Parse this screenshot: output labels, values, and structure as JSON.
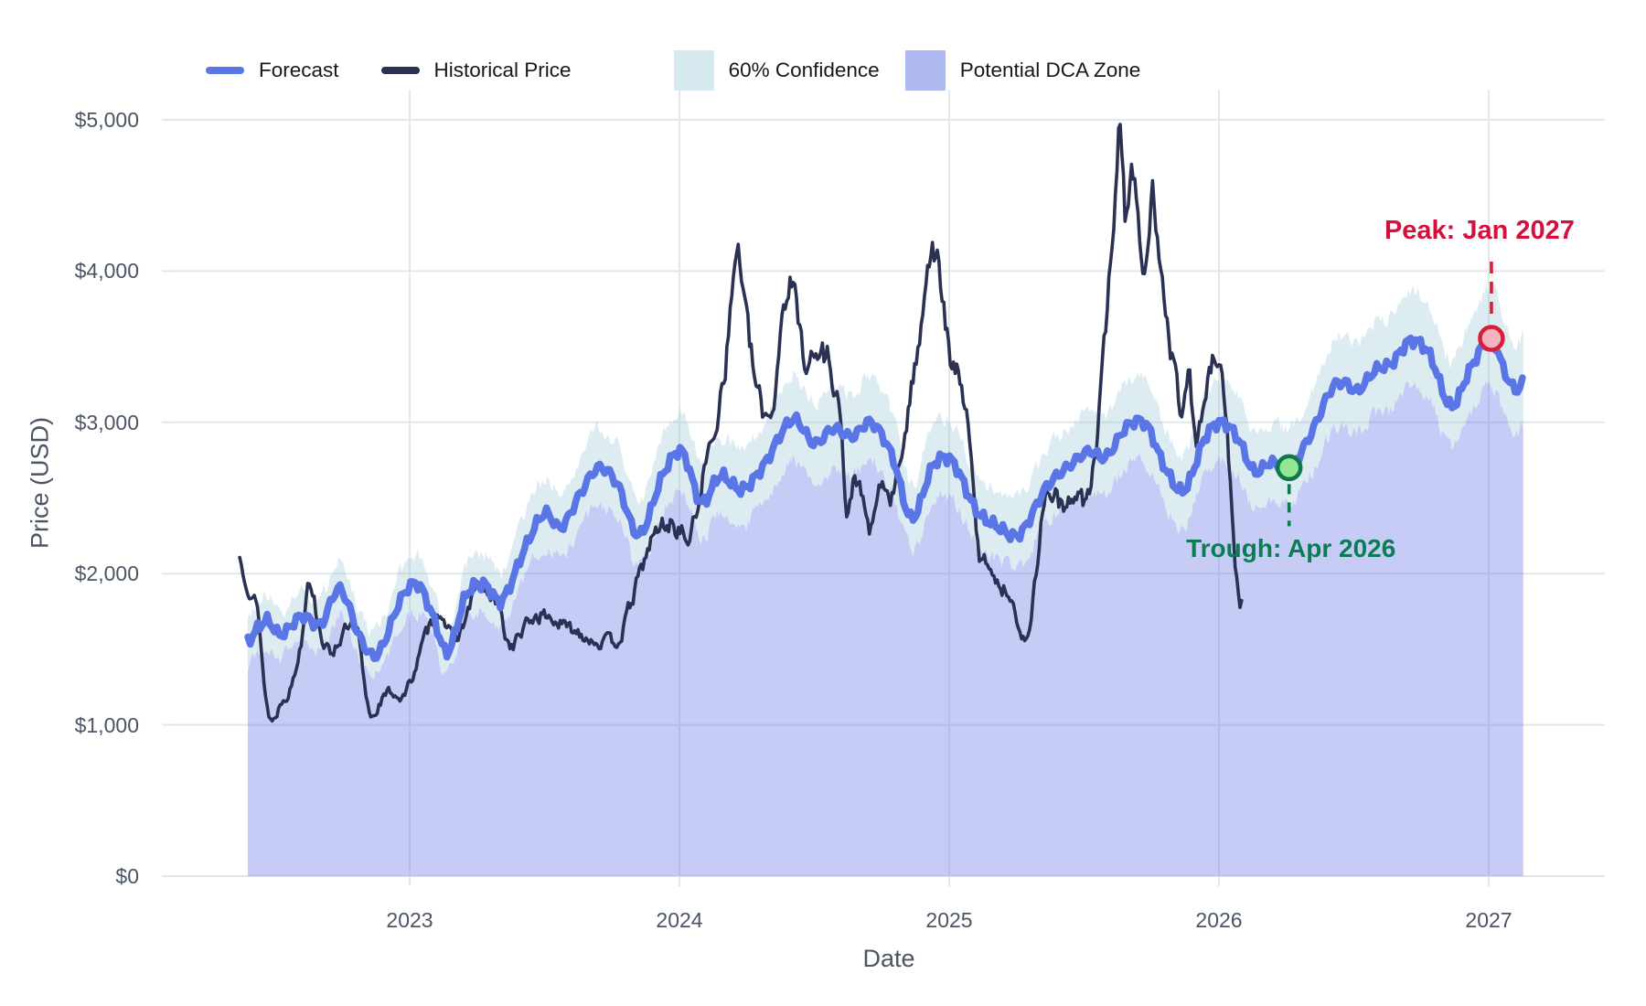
{
  "legend": {
    "items": [
      {
        "id": "forecast",
        "label": "Forecast",
        "swatch": "line",
        "color": "#5a75e6"
      },
      {
        "id": "historical",
        "label": "Historical Price",
        "swatch": "line",
        "color": "#2b3152"
      },
      {
        "id": "confidence",
        "label": "60% Confidence",
        "swatch": "patch",
        "color": "#d5e9ef"
      },
      {
        "id": "dca-zone",
        "label": "Potential DCA Zone",
        "swatch": "patch",
        "color": "#aeb9f1"
      }
    ]
  },
  "chart_data": {
    "type": "line",
    "xlabel": "Date",
    "ylabel": "Price (USD)",
    "ylim": [
      0,
      5000
    ],
    "xlim_years": [
      2022.13,
      2027.43
    ],
    "grid": true,
    "legend_position": "top-left",
    "y_ticks": [
      {
        "value": 0,
        "label": "$0"
      },
      {
        "value": 1000,
        "label": "$1,000"
      },
      {
        "value": 2000,
        "label": "$2,000"
      },
      {
        "value": 3000,
        "label": "$3,000"
      },
      {
        "value": 4000,
        "label": "$4,000"
      },
      {
        "value": 5000,
        "label": "$5,000"
      }
    ],
    "x_ticks": [
      {
        "value": 2023,
        "label": "2023"
      },
      {
        "value": 2024,
        "label": "2024"
      },
      {
        "value": 2025,
        "label": "2025"
      },
      {
        "value": 2026,
        "label": "2026"
      },
      {
        "value": 2027,
        "label": "2027"
      }
    ],
    "series": [
      {
        "name": "Historical Price",
        "color": "#2b3152",
        "style": "noisy-daily-line",
        "points": [
          [
            2022.37,
            2100
          ],
          [
            2022.4,
            1950
          ],
          [
            2022.44,
            1700
          ],
          [
            2022.465,
            1200
          ],
          [
            2022.49,
            1030
          ],
          [
            2022.53,
            1180
          ],
          [
            2022.56,
            1250
          ],
          [
            2022.6,
            1580
          ],
          [
            2022.625,
            1990
          ],
          [
            2022.66,
            1690
          ],
          [
            2022.7,
            1480
          ],
          [
            2022.74,
            1570
          ],
          [
            2022.78,
            1640
          ],
          [
            2022.81,
            1570
          ],
          [
            2022.835,
            1220
          ],
          [
            2022.86,
            1060
          ],
          [
            2022.89,
            1150
          ],
          [
            2022.93,
            1215
          ],
          [
            2022.98,
            1195
          ],
          [
            2023.03,
            1430
          ],
          [
            2023.07,
            1630
          ],
          [
            2023.12,
            1745
          ],
          [
            2023.16,
            1560
          ],
          [
            2023.2,
            1670
          ],
          [
            2023.25,
            1910
          ],
          [
            2023.29,
            1855
          ],
          [
            2023.33,
            1765
          ],
          [
            2023.37,
            1530
          ],
          [
            2023.42,
            1625
          ],
          [
            2023.47,
            1720
          ],
          [
            2023.53,
            1700
          ],
          [
            2023.58,
            1640
          ],
          [
            2023.63,
            1615
          ],
          [
            2023.68,
            1565
          ],
          [
            2023.73,
            1545
          ],
          [
            2023.78,
            1585
          ],
          [
            2023.82,
            1800
          ],
          [
            2023.86,
            2030
          ],
          [
            2023.9,
            2230
          ],
          [
            2023.95,
            2330
          ],
          [
            2024.0,
            2290
          ],
          [
            2024.04,
            2245
          ],
          [
            2024.09,
            2660
          ],
          [
            2024.13,
            2960
          ],
          [
            2024.18,
            3550
          ],
          [
            2024.215,
            4150
          ],
          [
            2024.25,
            3640
          ],
          [
            2024.285,
            3230
          ],
          [
            2024.315,
            3060
          ],
          [
            2024.35,
            3160
          ],
          [
            2024.385,
            3780
          ],
          [
            2024.42,
            3880
          ],
          [
            2024.46,
            3480
          ],
          [
            2024.5,
            3420
          ],
          [
            2024.535,
            3460
          ],
          [
            2024.565,
            3340
          ],
          [
            2024.6,
            2980
          ],
          [
            2024.62,
            2340
          ],
          [
            2024.65,
            2660
          ],
          [
            2024.68,
            2450
          ],
          [
            2024.715,
            2290
          ],
          [
            2024.75,
            2610
          ],
          [
            2024.78,
            2480
          ],
          [
            2024.81,
            2660
          ],
          [
            2024.85,
            3110
          ],
          [
            2024.88,
            3420
          ],
          [
            2024.91,
            3950
          ],
          [
            2024.94,
            4150
          ],
          [
            2024.97,
            3880
          ],
          [
            2025.01,
            3340
          ],
          [
            2025.045,
            3290
          ],
          [
            2025.08,
            2740
          ],
          [
            2025.11,
            2140
          ],
          [
            2025.15,
            2080
          ],
          [
            2025.19,
            1900
          ],
          [
            2025.23,
            1880
          ],
          [
            2025.27,
            1540
          ],
          [
            2025.31,
            1820
          ],
          [
            2025.35,
            2460
          ],
          [
            2025.39,
            2530
          ],
          [
            2025.43,
            2400
          ],
          [
            2025.47,
            2560
          ],
          [
            2025.51,
            2480
          ],
          [
            2025.55,
            2920
          ],
          [
            2025.58,
            3620
          ],
          [
            2025.61,
            4400
          ],
          [
            2025.635,
            4930
          ],
          [
            2025.655,
            4380
          ],
          [
            2025.675,
            4720
          ],
          [
            2025.695,
            4520
          ],
          [
            2025.715,
            3920
          ],
          [
            2025.735,
            4110
          ],
          [
            2025.755,
            4500
          ],
          [
            2025.775,
            4230
          ],
          [
            2025.8,
            3860
          ],
          [
            2025.83,
            3400
          ],
          [
            2025.86,
            3110
          ],
          [
            2025.885,
            3360
          ],
          [
            2025.91,
            2910
          ],
          [
            2025.94,
            3060
          ],
          [
            2025.97,
            3340
          ],
          [
            2026.0,
            3350
          ],
          [
            2026.03,
            2920
          ],
          [
            2026.055,
            2200
          ],
          [
            2026.075,
            1820
          ],
          [
            2026.085,
            1860
          ]
        ]
      },
      {
        "name": "Forecast",
        "color": "#5a75e6",
        "style": "thick-smooth-line",
        "points": [
          [
            2022.4,
            1550
          ],
          [
            2022.47,
            1690
          ],
          [
            2022.52,
            1595
          ],
          [
            2022.6,
            1720
          ],
          [
            2022.67,
            1665
          ],
          [
            2022.74,
            1900
          ],
          [
            2022.82,
            1560
          ],
          [
            2022.88,
            1465
          ],
          [
            2022.97,
            1840
          ],
          [
            2023.03,
            1930
          ],
          [
            2023.09,
            1700
          ],
          [
            2023.14,
            1480
          ],
          [
            2023.21,
            1860
          ],
          [
            2023.28,
            1925
          ],
          [
            2023.34,
            1820
          ],
          [
            2023.43,
            2180
          ],
          [
            2023.5,
            2400
          ],
          [
            2023.56,
            2305
          ],
          [
            2023.63,
            2520
          ],
          [
            2023.7,
            2700
          ],
          [
            2023.77,
            2590
          ],
          [
            2023.85,
            2255
          ],
          [
            2023.94,
            2660
          ],
          [
            2024.01,
            2805
          ],
          [
            2024.08,
            2470
          ],
          [
            2024.15,
            2645
          ],
          [
            2024.23,
            2555
          ],
          [
            2024.31,
            2710
          ],
          [
            2024.42,
            3020
          ],
          [
            2024.5,
            2860
          ],
          [
            2024.57,
            2960
          ],
          [
            2024.64,
            2905
          ],
          [
            2024.71,
            3000
          ],
          [
            2024.79,
            2770
          ],
          [
            2024.86,
            2365
          ],
          [
            2024.94,
            2715
          ],
          [
            2025.01,
            2745
          ],
          [
            2025.1,
            2420
          ],
          [
            2025.18,
            2310
          ],
          [
            2025.26,
            2260
          ],
          [
            2025.36,
            2570
          ],
          [
            2025.45,
            2720
          ],
          [
            2025.52,
            2810
          ],
          [
            2025.58,
            2770
          ],
          [
            2025.66,
            2975
          ],
          [
            2025.73,
            2985
          ],
          [
            2025.8,
            2700
          ],
          [
            2025.87,
            2550
          ],
          [
            2025.95,
            2905
          ],
          [
            2026.01,
            3000
          ],
          [
            2026.07,
            2895
          ],
          [
            2026.13,
            2675
          ],
          [
            2026.19,
            2735
          ],
          [
            2026.26,
            2700
          ],
          [
            2026.34,
            2920
          ],
          [
            2026.42,
            3230
          ],
          [
            2026.47,
            3260
          ],
          [
            2026.51,
            3205
          ],
          [
            2026.58,
            3345
          ],
          [
            2026.64,
            3390
          ],
          [
            2026.71,
            3540
          ],
          [
            2026.78,
            3450
          ],
          [
            2026.86,
            3105
          ],
          [
            2026.93,
            3350
          ],
          [
            2027.01,
            3555
          ],
          [
            2027.06,
            3330
          ],
          [
            2027.1,
            3215
          ],
          [
            2027.13,
            3270
          ]
        ]
      }
    ],
    "band": {
      "name": "60% Confidence",
      "fill": "rgba(150,196,213,0.32)",
      "upper_rel": 1.085,
      "lower_rel": 0.915
    },
    "dca_zone": {
      "name": "Potential DCA Zone",
      "fill": "rgba(108,121,232,0.38)",
      "fills_to": "lower_confidence_bound"
    },
    "annotations": {
      "peak": {
        "label": "Peak: Jan 2027",
        "x": 2027.01,
        "y": 3555,
        "text_color": "#d60f3c",
        "line_color": "#d62039",
        "marker_fill": "#f4b4bf"
      },
      "trough": {
        "label": "Trough: Apr 2026",
        "x": 2026.26,
        "y": 2700,
        "text_color": "#0b7d55",
        "line_color": "#0e7a4c",
        "marker_fill": "#93e694"
      }
    }
  },
  "colors": {
    "background": "#ffffff",
    "gridline": "#e4e7ea",
    "tick_text": "#4b5563",
    "legend_text": "#16181d"
  }
}
